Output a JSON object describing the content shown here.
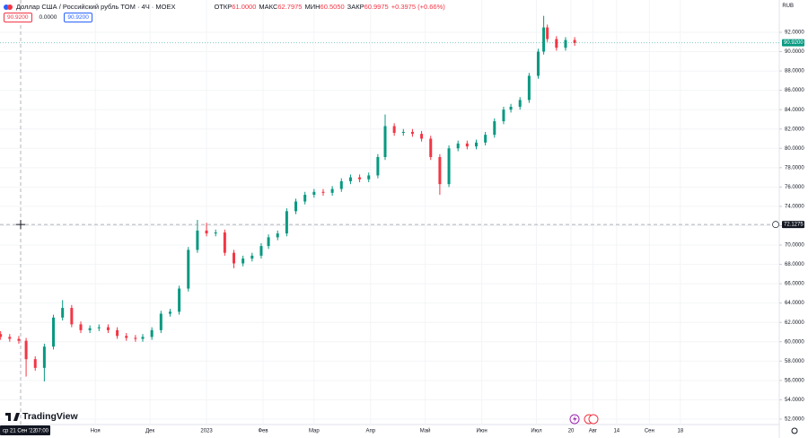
{
  "chart_data": {
    "type": "candlestick",
    "title": "Доллар США / Российский рубль TOM · 4Ч · MOEX",
    "currency": "RUB",
    "ohlc_labels": [
      "ОТКР",
      "МАКС",
      "МИН",
      "ЗАКР"
    ],
    "ohlc_values": [
      "61.0000",
      "62.7975",
      "60.5050",
      "60.9975"
    ],
    "change": "+0.3975 (+0.66%)",
    "price_boxes": [
      "90.9200",
      "0.0000",
      "90.9200"
    ],
    "logo": "TradingView",
    "up_color": "#089981",
    "down_color": "#f23645",
    "grid": true,
    "xlim": [
      -11.33,
      416.26
    ],
    "ylim": [
      51.44,
      94.04
    ],
    "x": [
      -11,
      -6,
      -1,
      3,
      8,
      13,
      18,
      23,
      28,
      33,
      38,
      43,
      48,
      53,
      58,
      63,
      67,
      72,
      77,
      82,
      87,
      92,
      97,
      102,
      107,
      112,
      117,
      122,
      127,
      132,
      136,
      141,
      146,
      151,
      156,
      161,
      166,
      171,
      176,
      181,
      186,
      191,
      196,
      200,
      205,
      210,
      215,
      220,
      225,
      230,
      235,
      240,
      245,
      250,
      255,
      260,
      265,
      269,
      274,
      279,
      284,
      287,
      289,
      294,
      299,
      304
    ],
    "open": [
      60.8,
      60.5,
      60.3,
      60.1,
      58.2,
      57.3,
      59.5,
      62.5,
      63.5,
      61.8,
      61.2,
      61.4,
      61.5,
      61.2,
      60.6,
      60.4,
      60.3,
      60.5,
      61.2,
      62.9,
      63.1,
      65.5,
      69.5,
      71.5,
      71.2,
      71.3,
      69.2,
      68.1,
      68.6,
      68.9,
      69.9,
      70.8,
      71.2,
      73.5,
      74.5,
      75.2,
      75.5,
      75.4,
      75.8,
      76.6,
      77,
      76.8,
      77.2,
      79.1,
      82.3,
      81.6,
      81.7,
      81.5,
      81,
      79.1,
      76.3,
      80,
      80.5,
      80.2,
      80.6,
      81.4,
      82.8,
      84,
      84.3,
      85,
      87.5,
      90,
      92.5,
      91.3,
      90.4,
      91.2
    ],
    "high": [
      61.1,
      60.8,
      60.6,
      60.4,
      58.5,
      59.8,
      62.8,
      64.3,
      63.8,
      62.1,
      61.7,
      61.8,
      61.8,
      61.5,
      60.9,
      60.7,
      60.8,
      61.5,
      63.2,
      63.4,
      65.8,
      69.8,
      72.6,
      72.3,
      71.6,
      71.6,
      69.5,
      68.9,
      69.2,
      70.2,
      71.1,
      71.5,
      73.8,
      74.8,
      75.5,
      75.8,
      75.8,
      76.1,
      76.9,
      77.3,
      77.3,
      77.5,
      79.4,
      83.5,
      82.6,
      82,
      82,
      81.8,
      81.3,
      79.4,
      80.3,
      80.8,
      80.8,
      80.9,
      81.7,
      83.1,
      84.3,
      84.6,
      85.3,
      87.8,
      90.3,
      93.7,
      92.8,
      91.6,
      91.5,
      91.5
    ],
    "low": [
      60.2,
      60,
      59.8,
      56.4,
      57,
      55.9,
      59.2,
      62.2,
      61.5,
      60.9,
      60.9,
      61.1,
      60.9,
      60.3,
      60.1,
      60,
      60,
      60.2,
      60.9,
      62.6,
      62.8,
      65.2,
      69.2,
      70.9,
      70.9,
      68.9,
      67.6,
      67.8,
      68.3,
      68.6,
      69.6,
      70.5,
      70.9,
      73.2,
      74.2,
      74.9,
      75.1,
      75.1,
      75.5,
      76.3,
      76.5,
      76.5,
      76.9,
      78.8,
      81.3,
      81.3,
      81.2,
      80.7,
      78.8,
      75.2,
      76,
      79.7,
      79.9,
      79.9,
      80.3,
      81.1,
      82.5,
      83.7,
      84,
      84.7,
      87.2,
      89.7,
      91,
      90.1,
      90.1,
      90.6
    ],
    "close": [
      60.5,
      60.3,
      60.1,
      58.2,
      57.3,
      59.5,
      62.5,
      63.5,
      61.8,
      61.2,
      61.4,
      61.5,
      61.2,
      60.6,
      60.4,
      60.3,
      60.5,
      61.2,
      62.9,
      63.1,
      65.5,
      69.5,
      71.5,
      71.2,
      71.3,
      69.2,
      68.1,
      68.6,
      68.9,
      69.9,
      70.8,
      71.2,
      73.5,
      74.5,
      75.2,
      75.5,
      75.4,
      75.8,
      76.6,
      77,
      76.8,
      77.2,
      79.1,
      82.3,
      81.6,
      81.7,
      81.5,
      81,
      79.1,
      76.3,
      80,
      80.5,
      80.2,
      80.6,
      81.4,
      82.8,
      84,
      84.3,
      85,
      87.5,
      90,
      92.5,
      91.3,
      90.4,
      91.2,
      90.9
    ],
    "yticks": [
      {
        "value": 52,
        "label": "52.0000"
      },
      {
        "value": 54,
        "label": "54.0000"
      },
      {
        "value": 56,
        "label": "56.0000"
      },
      {
        "value": 58,
        "label": "58.0000"
      },
      {
        "value": 60,
        "label": "60.0000"
      },
      {
        "value": 62,
        "label": "62.0000"
      },
      {
        "value": 64,
        "label": "64.0000"
      },
      {
        "value": 66,
        "label": "66.0000"
      },
      {
        "value": 68,
        "label": "68.0000"
      },
      {
        "value": 70,
        "label": "70.0000"
      },
      {
        "value": 72,
        "label": "72.0000"
      },
      {
        "value": 74,
        "label": "74.0000"
      },
      {
        "value": 76,
        "label": "76.0000"
      },
      {
        "value": 78,
        "label": "78.0000"
      },
      {
        "value": 80,
        "label": "80.0000"
      },
      {
        "value": 82,
        "label": "82.0000"
      },
      {
        "value": 84,
        "label": "84.0000"
      },
      {
        "value": 86,
        "label": "86.0000"
      },
      {
        "value": 88,
        "label": "88.0000"
      },
      {
        "value": 90,
        "label": "90.0000"
      },
      {
        "value": 92,
        "label": "92.0000"
      }
    ],
    "xticks": [
      {
        "value": 41,
        "label": "Ноя"
      },
      {
        "value": 71,
        "label": "Дек"
      },
      {
        "value": 102,
        "label": "2023"
      },
      {
        "value": 133,
        "label": "Фев"
      },
      {
        "value": 161,
        "label": "Мар"
      },
      {
        "value": 192,
        "label": "Апр"
      },
      {
        "value": 222,
        "label": "Май"
      },
      {
        "value": 253,
        "label": "Июн"
      },
      {
        "value": 283,
        "label": "Июл"
      },
      {
        "value": 302,
        "label": "20"
      },
      {
        "value": 314,
        "label": "Авг"
      },
      {
        "value": 327,
        "label": "14"
      },
      {
        "value": 345,
        "label": "Сен"
      },
      {
        "value": 362,
        "label": "18"
      }
    ],
    "last_price": {
      "value": 90.92,
      "label": "90.9200"
    },
    "crosshair": {
      "x": 0,
      "y": 72.1275,
      "date_label": "ср 21 Сен '22",
      "time_label": "07:00"
    }
  }
}
